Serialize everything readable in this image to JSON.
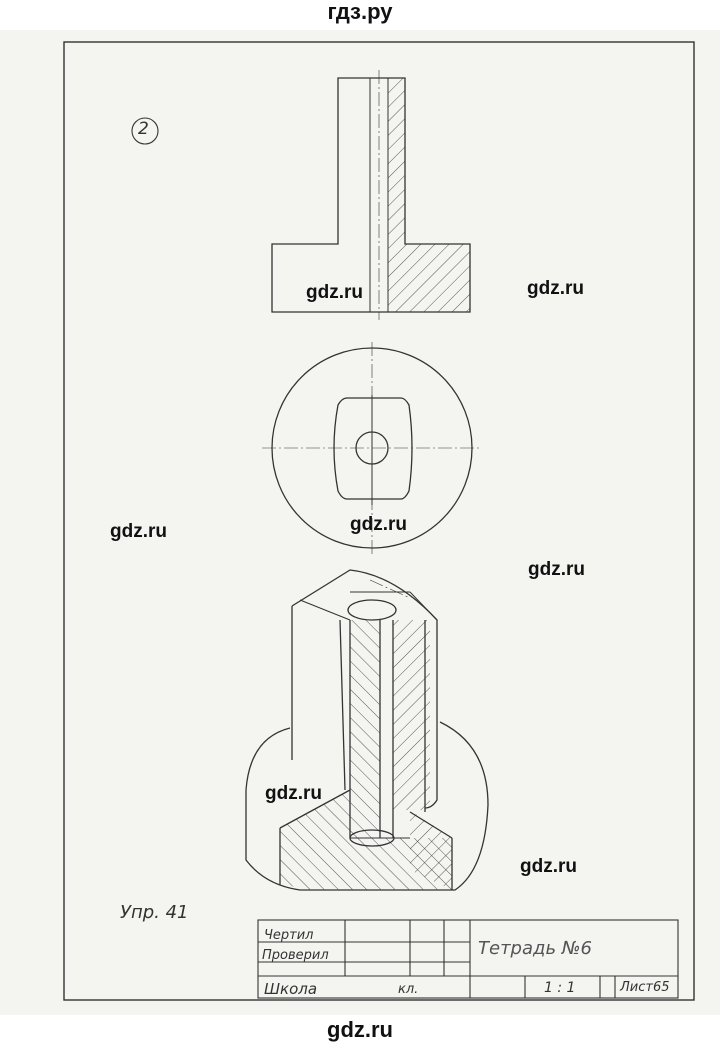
{
  "header": {
    "site": "гдз.ру"
  },
  "footer": {
    "site": "gdz.ru"
  },
  "drawing": {
    "number": "2",
    "exercise": "Упр. 41",
    "watermarks": [
      "gdz.ru",
      "gdz.ru",
      "gdz.ru",
      "gdz.ru",
      "gdz.ru",
      "gdz.ru",
      "gdz.ru"
    ]
  },
  "title_block": {
    "drew": "Чертил",
    "checked": "Проверил",
    "school": "Школа",
    "grade": "кл.",
    "title": "Тетрадь №6",
    "scale": "1 : 1",
    "sheet": "Лист65"
  },
  "colors": {
    "line": "#333333",
    "paper": "#f4f4f1"
  }
}
